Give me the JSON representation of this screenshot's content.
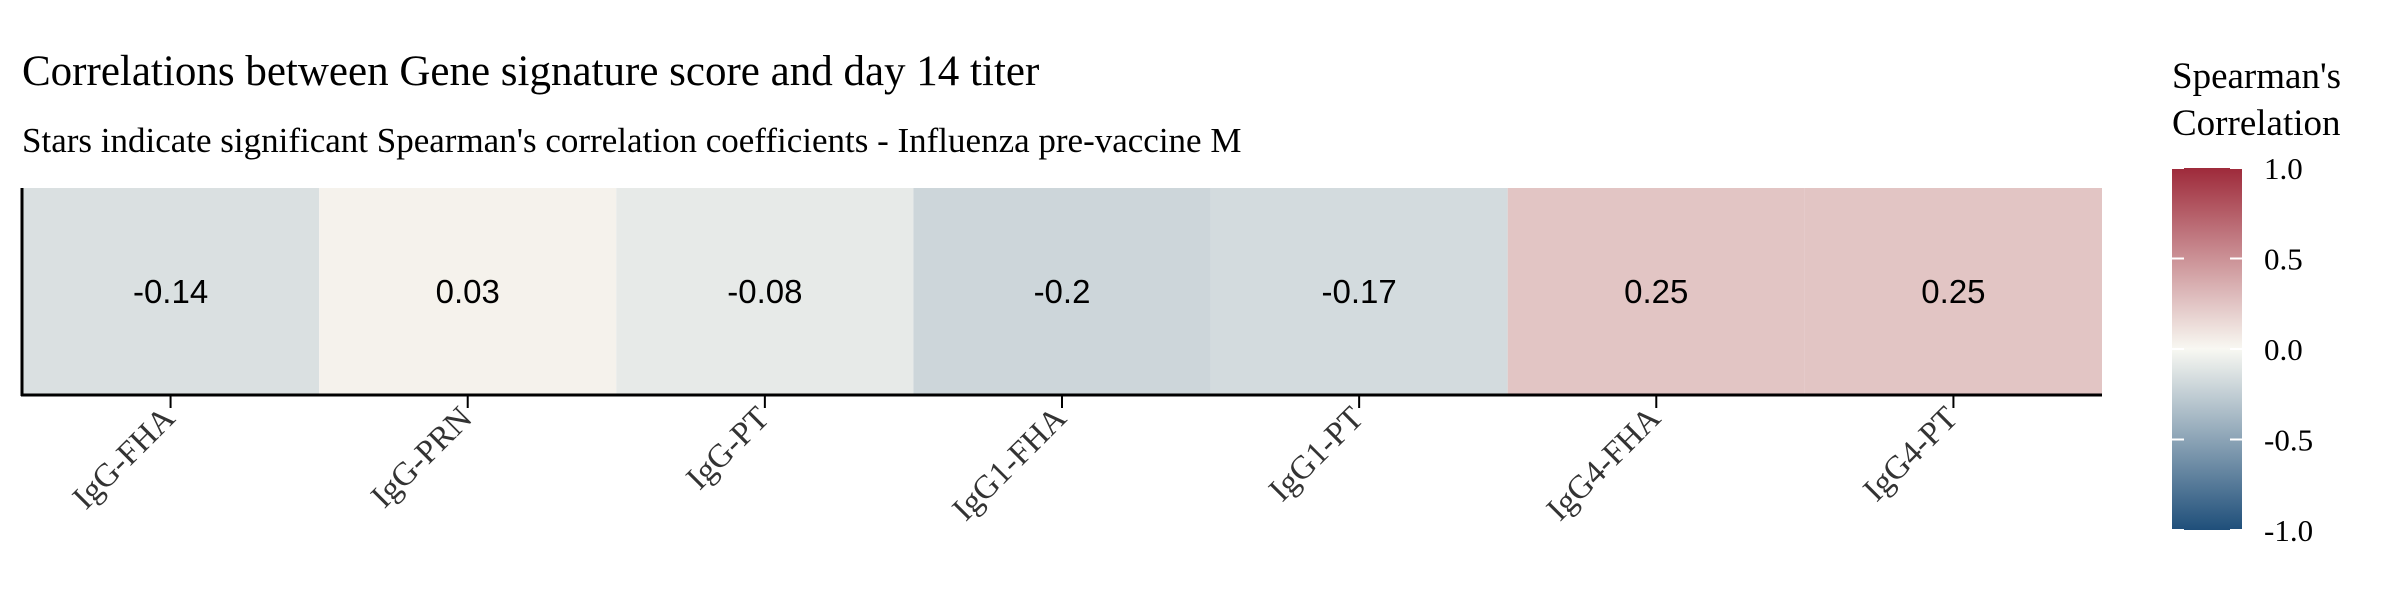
{
  "chart_data": {
    "type": "heatmap",
    "title": "Correlations between Gene signature score and day 14 titer",
    "subtitle": "Stars indicate significant Spearman's correlation coefficients - Influenza pre-vaccine M",
    "categories": [
      "IgG-FHA",
      "IgG-PRN",
      "IgG-PT",
      "IgG1-FHA",
      "IgG1-PT",
      "IgG4-FHA",
      "IgG4-PT"
    ],
    "values": [
      -0.14,
      0.03,
      -0.08,
      -0.2,
      -0.17,
      0.25,
      0.25
    ],
    "cell_labels": [
      "-0.14",
      "0.03",
      "-0.08",
      "-0.2",
      "-0.17",
      "0.25",
      "0.25"
    ],
    "legend": {
      "title_line1": "Spearman's",
      "title_line2": "Correlation",
      "ticks": [
        1.0,
        0.5,
        0.0,
        -0.5,
        -1.0
      ],
      "tick_labels": [
        "1.0",
        "0.5",
        "0.0",
        "-0.5",
        "-1.0"
      ],
      "range": [
        -1.0,
        1.0
      ],
      "placement": "right"
    },
    "colors": {
      "high": "#9e2a3a",
      "mid": "#f8f8f2",
      "low": "#1f4f7a"
    }
  }
}
